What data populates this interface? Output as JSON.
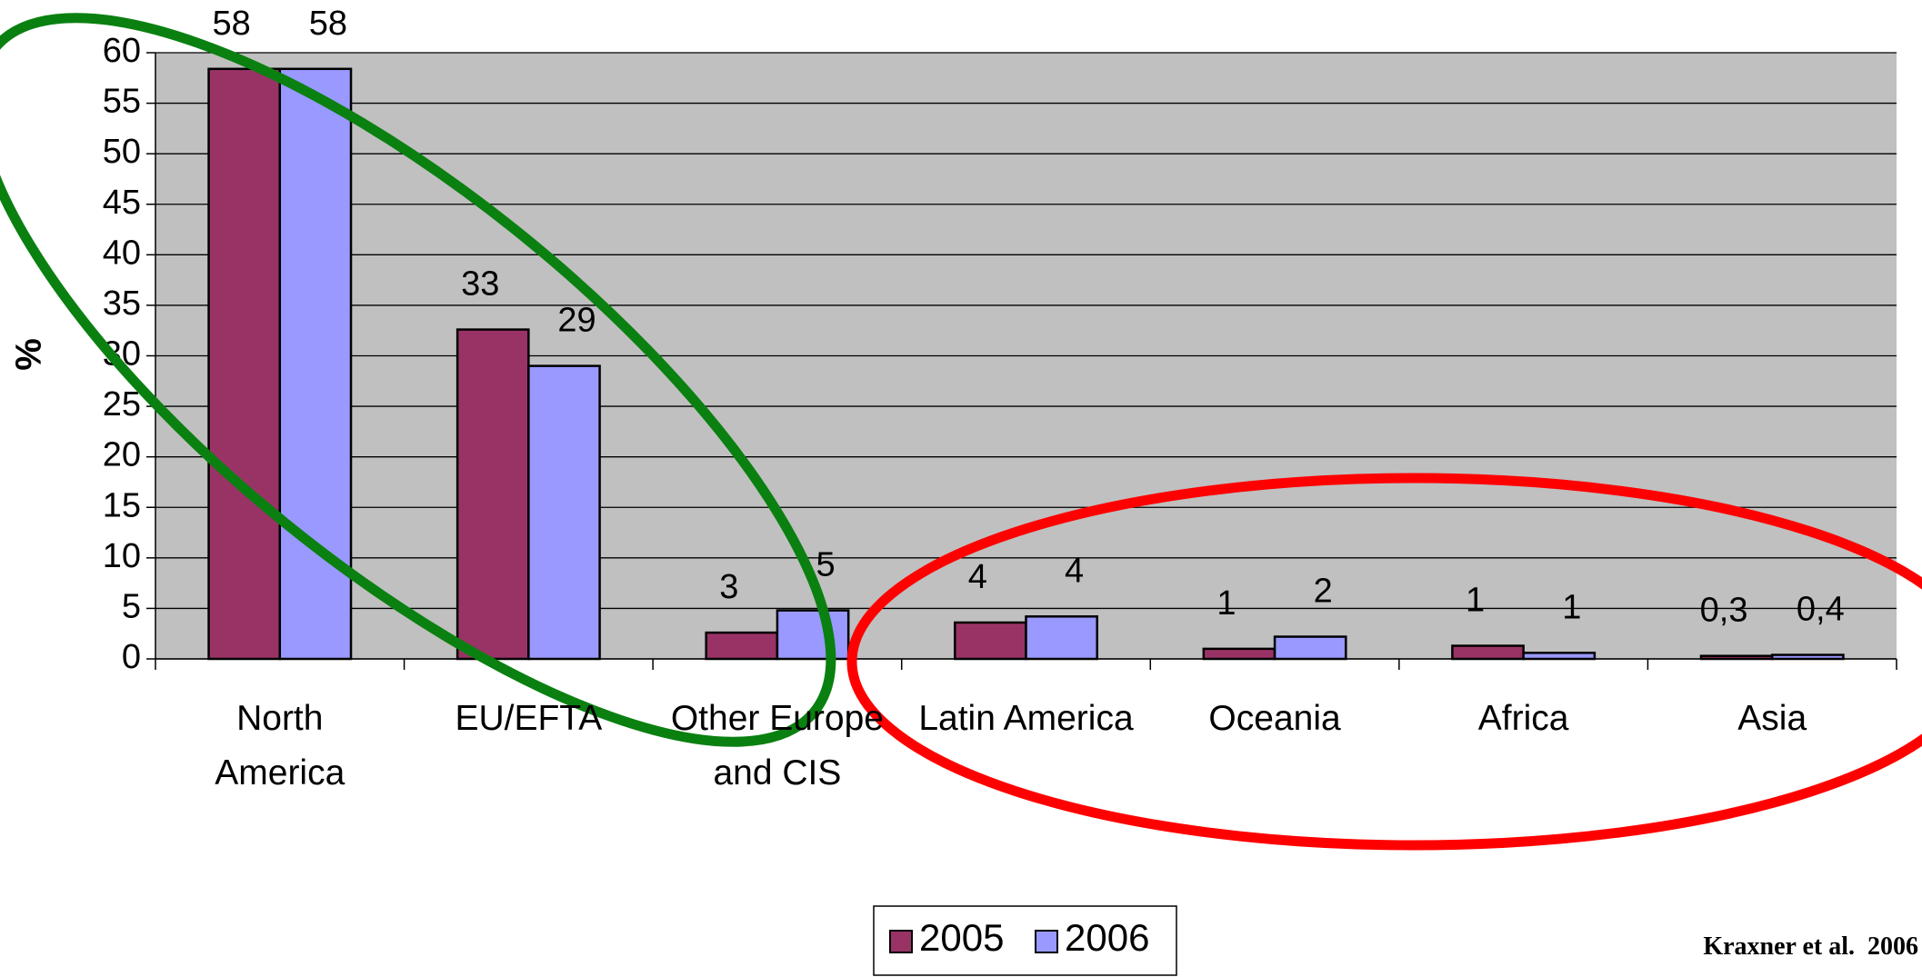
{
  "chart_data": {
    "type": "bar",
    "y_label": "%",
    "categories": [
      "North America",
      "EU/EFTA",
      "Other Europe and CIS",
      "Latin America",
      "Oceania",
      "Africa",
      "Asia"
    ],
    "series": [
      {
        "name": "2005",
        "color": "#993366",
        "values": [
          58.4,
          32.6,
          2.6,
          3.6,
          1.0,
          1.3,
          0.3
        ],
        "value_labels": [
          "58",
          "33",
          "3",
          "4",
          "1",
          "1",
          "0,3"
        ]
      },
      {
        "name": "2006",
        "color": "#9999ff",
        "values": [
          58.4,
          29.0,
          4.8,
          4.2,
          2.2,
          0.6,
          0.4
        ],
        "value_labels": [
          "58",
          "29",
          "5",
          "4",
          "2",
          "1",
          "0,4"
        ]
      }
    ],
    "ylim": [
      0,
      60
    ],
    "yticks": [
      0,
      5,
      10,
      15,
      20,
      25,
      30,
      35,
      40,
      45,
      50,
      55,
      60
    ],
    "grid": true,
    "legend": "bottom",
    "source": "Kraxner et al.  2006"
  }
}
